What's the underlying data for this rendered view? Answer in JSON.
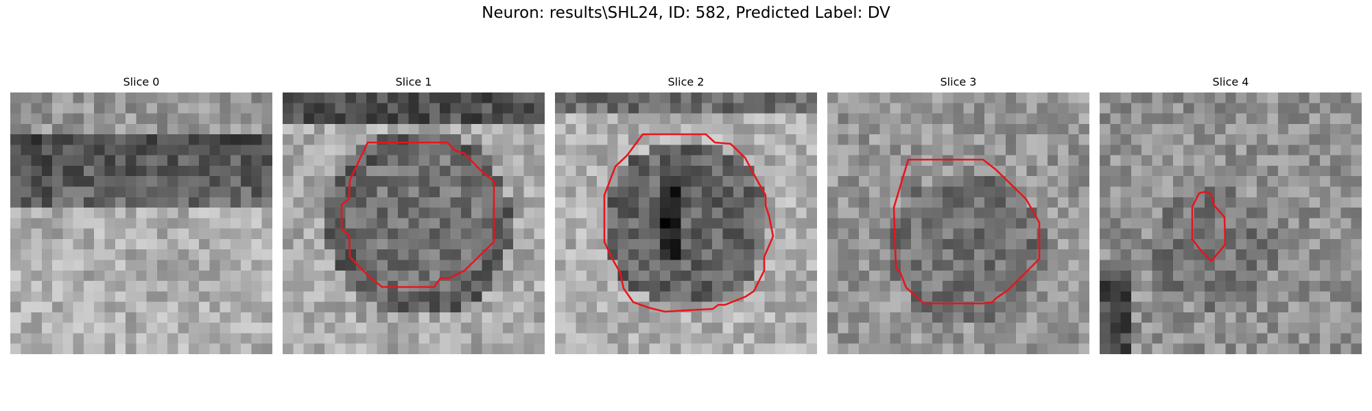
{
  "figure": {
    "title": "Neuron: results\\SHL24, ID: 582, Predicted Label: DV"
  },
  "panels": [
    {
      "title": "Slice 0",
      "has_contour": false
    },
    {
      "title": "Slice 1",
      "has_contour": true
    },
    {
      "title": "Slice 2",
      "has_contour": true
    },
    {
      "title": "Slice 3",
      "has_contour": true
    },
    {
      "title": "Slice 4",
      "has_contour": true
    }
  ],
  "colors": {
    "contour": "#e8141c",
    "colormap": "gray"
  }
}
